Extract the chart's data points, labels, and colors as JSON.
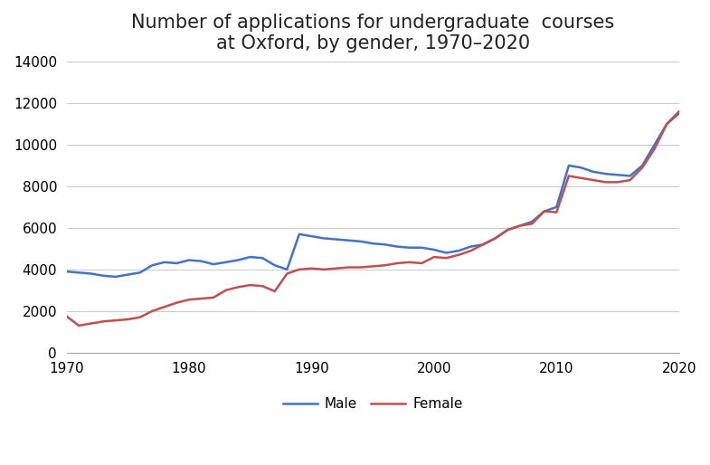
{
  "title": "Number of applications for undergraduate  courses\nat Oxford, by gender, 1970–2020",
  "male_x": [
    1970,
    1971,
    1972,
    1973,
    1974,
    1975,
    1976,
    1977,
    1978,
    1979,
    1980,
    1981,
    1982,
    1983,
    1984,
    1985,
    1986,
    1987,
    1988,
    1989,
    1990,
    1991,
    1992,
    1993,
    1994,
    1995,
    1996,
    1997,
    1998,
    1999,
    2000,
    2001,
    2002,
    2003,
    2004,
    2005,
    2006,
    2007,
    2008,
    2009,
    2010,
    2011,
    2012,
    2013,
    2014,
    2015,
    2016,
    2017,
    2018,
    2019,
    2020
  ],
  "male_y": [
    3900,
    3850,
    3800,
    3700,
    3650,
    3750,
    3850,
    4200,
    4350,
    4300,
    4450,
    4400,
    4250,
    4350,
    4450,
    4600,
    4550,
    4200,
    4000,
    5700,
    5600,
    5500,
    5450,
    5400,
    5350,
    5250,
    5200,
    5100,
    5050,
    5050,
    4950,
    4800,
    4900,
    5100,
    5200,
    5500,
    5900,
    6100,
    6300,
    6800,
    7000,
    9000,
    8900,
    8700,
    8600,
    8550,
    8500,
    9000,
    10000,
    11000,
    11500
  ],
  "female_x": [
    1970,
    1971,
    1972,
    1973,
    1974,
    1975,
    1976,
    1977,
    1978,
    1979,
    1980,
    1981,
    1982,
    1983,
    1984,
    1985,
    1986,
    1987,
    1988,
    1989,
    1990,
    1991,
    1992,
    1993,
    1994,
    1995,
    1996,
    1997,
    1998,
    1999,
    2000,
    2001,
    2002,
    2003,
    2004,
    2005,
    2006,
    2007,
    2008,
    2009,
    2010,
    2011,
    2012,
    2013,
    2014,
    2015,
    2016,
    2017,
    2018,
    2019,
    2020
  ],
  "female_y": [
    1750,
    1300,
    1400,
    1500,
    1550,
    1600,
    1700,
    2000,
    2200,
    2400,
    2550,
    2600,
    2650,
    3000,
    3150,
    3250,
    3200,
    2950,
    3800,
    4000,
    4050,
    4000,
    4050,
    4100,
    4100,
    4150,
    4200,
    4300,
    4350,
    4300,
    4600,
    4550,
    4700,
    4900,
    5200,
    5500,
    5900,
    6100,
    6200,
    6800,
    6750,
    8500,
    8400,
    8300,
    8200,
    8200,
    8300,
    8900,
    9800,
    11000,
    11600
  ],
  "male_color": "#4472c4",
  "female_color": "#c0504d",
  "background_color": "#ffffff",
  "xlim": [
    1970,
    2020
  ],
  "ylim": [
    0,
    14000
  ],
  "yticks": [
    0,
    2000,
    4000,
    6000,
    8000,
    10000,
    12000,
    14000
  ],
  "ytick_labels": [
    "0",
    "2000",
    "4000",
    "6000",
    "8000",
    "10000",
    "12000",
    "14000"
  ],
  "xticks": [
    1970,
    1980,
    1990,
    2000,
    2010,
    2020
  ],
  "xtick_labels": [
    "1970",
    "1980",
    "1990",
    "2000",
    "2010",
    "2020"
  ],
  "legend_male": "Male",
  "legend_female": "Female",
  "title_fontsize": 15,
  "tick_fontsize": 11,
  "line_width": 1.8
}
